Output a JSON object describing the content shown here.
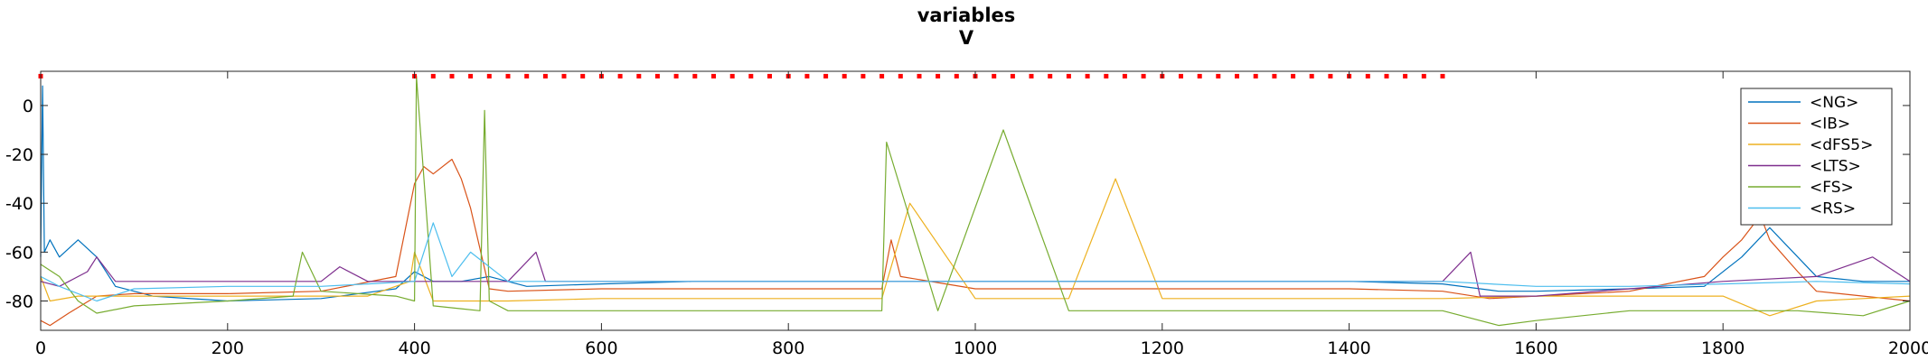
{
  "chart_data": {
    "type": "line",
    "title": "variables",
    "subtitle": "V",
    "xlabel": "",
    "ylabel": "",
    "xlim": [
      0,
      2000
    ],
    "ylim": [
      -92,
      14
    ],
    "x_ticks": [
      0,
      200,
      400,
      600,
      800,
      1000,
      1200,
      1400,
      1600,
      1800,
      2000
    ],
    "y_ticks": [
      0,
      -20,
      -40,
      -60,
      -80
    ],
    "grid": false,
    "legend_position": "top-right",
    "series": [
      {
        "name": "<NG>",
        "color": "#0072BD",
        "x": [
          0,
          2,
          4,
          10,
          20,
          40,
          60,
          80,
          120,
          200,
          300,
          380,
          400,
          420,
          450,
          480,
          520,
          600,
          700,
          800,
          900,
          1000,
          1100,
          1200,
          1300,
          1400,
          1500,
          1560,
          1600,
          1700,
          1780,
          1820,
          1850,
          1900,
          1950,
          2000
        ],
        "y": [
          -62,
          8,
          -60,
          -55,
          -62,
          -55,
          -62,
          -74,
          -78,
          -80,
          -79,
          -75,
          -68,
          -72,
          -72,
          -70,
          -74,
          -73,
          -72,
          -72,
          -72,
          -72,
          -72,
          -72,
          -72,
          -72,
          -73,
          -76,
          -76,
          -75,
          -74,
          -62,
          -50,
          -70,
          -72,
          -72
        ]
      },
      {
        "name": "<IB>",
        "color": "#D95319",
        "x": [
          0,
          10,
          30,
          60,
          100,
          200,
          300,
          380,
          400,
          410,
          420,
          440,
          450,
          460,
          480,
          500,
          600,
          700,
          800,
          900,
          910,
          920,
          1000,
          1100,
          1200,
          1300,
          1400,
          1500,
          1550,
          1600,
          1700,
          1780,
          1800,
          1820,
          1840,
          1850,
          1880,
          1900,
          1950,
          2000
        ],
        "y": [
          -88,
          -90,
          -85,
          -78,
          -77,
          -77,
          -76,
          -70,
          -32,
          -25,
          -28,
          -22,
          -30,
          -42,
          -75,
          -76,
          -75,
          -75,
          -75,
          -75,
          -55,
          -70,
          -75,
          -75,
          -75,
          -75,
          -75,
          -76,
          -79,
          -78,
          -76,
          -70,
          -62,
          -55,
          -45,
          -55,
          -68,
          -76,
          -78,
          -80
        ]
      },
      {
        "name": "<dFS5>",
        "color": "#EDB120",
        "x": [
          0,
          10,
          40,
          80,
          150,
          250,
          350,
          395,
          400,
          420,
          480,
          500,
          600,
          700,
          800,
          900,
          930,
          1000,
          1100,
          1150,
          1200,
          1300,
          1400,
          1500,
          1600,
          1700,
          1800,
          1850,
          1900,
          2000
        ],
        "y": [
          -70,
          -80,
          -78,
          -78,
          -78,
          -78,
          -78,
          -72,
          -60,
          -80,
          -80,
          -80,
          -79,
          -79,
          -79,
          -79,
          -40,
          -79,
          -79,
          -30,
          -79,
          -79,
          -79,
          -79,
          -78,
          -78,
          -78,
          -86,
          -80,
          -78
        ]
      },
      {
        "name": "<LTS>",
        "color": "#7E2F8E",
        "x": [
          0,
          20,
          50,
          60,
          80,
          120,
          200,
          300,
          320,
          350,
          400,
          500,
          530,
          540,
          600,
          700,
          800,
          900,
          1000,
          1100,
          1200,
          1300,
          1400,
          1500,
          1530,
          1540,
          1600,
          1700,
          1800,
          1900,
          1960,
          2000
        ],
        "y": [
          -72,
          -74,
          -68,
          -62,
          -72,
          -72,
          -72,
          -72,
          -66,
          -72,
          -72,
          -72,
          -60,
          -72,
          -72,
          -72,
          -72,
          -72,
          -72,
          -72,
          -72,
          -72,
          -72,
          -72,
          -60,
          -78,
          -78,
          -75,
          -72,
          -70,
          -62,
          -72
        ]
      },
      {
        "name": "<FS>",
        "color": "#77AC30",
        "x": [
          0,
          20,
          40,
          60,
          100,
          200,
          270,
          280,
          300,
          380,
          400,
          402,
          420,
          470,
          475,
          480,
          500,
          600,
          700,
          800,
          900,
          905,
          960,
          1030,
          1100,
          1200,
          1300,
          1400,
          1480,
          1500,
          1560,
          1600,
          1700,
          1800,
          1880,
          1950,
          2000
        ],
        "y": [
          -65,
          -70,
          -80,
          -85,
          -82,
          -80,
          -78,
          -60,
          -76,
          -78,
          -80,
          12,
          -82,
          -84,
          -2,
          -80,
          -84,
          -84,
          -84,
          -84,
          -84,
          -15,
          -84,
          -10,
          -84,
          -84,
          -84,
          -84,
          -84,
          -84,
          -90,
          -88,
          -84,
          -84,
          -84,
          -86,
          -80
        ]
      },
      {
        "name": "<RS>",
        "color": "#4DBEEE",
        "x": [
          0,
          20,
          60,
          100,
          200,
          300,
          350,
          400,
          420,
          440,
          460,
          500,
          600,
          700,
          800,
          900,
          1000,
          1100,
          1200,
          1300,
          1400,
          1500,
          1600,
          1700,
          1800,
          1900,
          2000
        ],
        "y": [
          -70,
          -74,
          -80,
          -75,
          -74,
          -74,
          -73,
          -72,
          -48,
          -70,
          -60,
          -72,
          -72,
          -72,
          -72,
          -72,
          -72,
          -72,
          -72,
          -72,
          -72,
          -72,
          -74,
          -74,
          -73,
          -72,
          -73
        ]
      }
    ],
    "markers": {
      "name": "",
      "color": "#FF0000",
      "y": 12,
      "x": [
        0,
        400,
        420,
        440,
        460,
        480,
        500,
        520,
        540,
        560,
        580,
        600,
        620,
        640,
        660,
        680,
        700,
        720,
        740,
        760,
        780,
        800,
        820,
        840,
        860,
        880,
        900,
        920,
        940,
        960,
        980,
        1000,
        1020,
        1040,
        1060,
        1080,
        1100,
        1120,
        1140,
        1160,
        1180,
        1200,
        1220,
        1240,
        1260,
        1280,
        1300,
        1320,
        1340,
        1360,
        1380,
        1400,
        1420,
        1440,
        1460,
        1480,
        1500
      ]
    }
  }
}
